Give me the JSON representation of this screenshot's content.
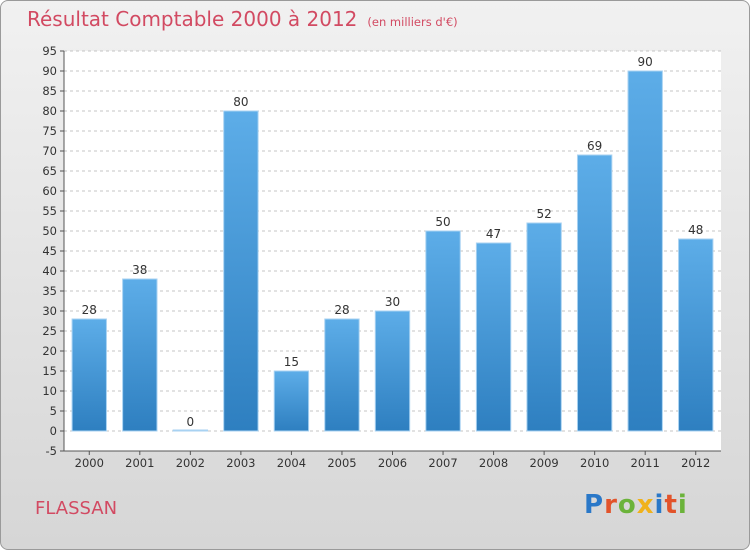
{
  "chart_data": {
    "type": "bar",
    "title": "Résultat Comptable 2000 à 2012",
    "subtitle": "(en milliers d'€)",
    "categories": [
      "2000",
      "2001",
      "2002",
      "2003",
      "2004",
      "2005",
      "2006",
      "2007",
      "2008",
      "2009",
      "2010",
      "2011",
      "2012"
    ],
    "values": [
      28,
      38,
      0,
      80,
      15,
      28,
      30,
      50,
      47,
      52,
      69,
      90,
      48
    ],
    "xlabel": "",
    "ylabel": "",
    "ylim": [
      -5,
      95
    ],
    "yticks": [
      -5,
      0,
      5,
      10,
      15,
      20,
      25,
      30,
      35,
      40,
      45,
      50,
      55,
      60,
      65,
      70,
      75,
      80,
      85,
      90,
      95
    ],
    "grid": "horizontal dashed",
    "bar_color_top": "#5dade8",
    "bar_color_bottom": "#2e7fc0"
  },
  "footer": {
    "place": "FLASSAN",
    "logo_letters": [
      {
        "ch": "P",
        "color": "#2a78c8"
      },
      {
        "ch": "r",
        "color": "#e2532a"
      },
      {
        "ch": "o",
        "color": "#6bb33a"
      },
      {
        "ch": "x",
        "color": "#f0b21c"
      },
      {
        "ch": "i",
        "color": "#2a78c8"
      },
      {
        "ch": "t",
        "color": "#e2532a"
      },
      {
        "ch": "i",
        "color": "#6bb33a"
      }
    ]
  }
}
